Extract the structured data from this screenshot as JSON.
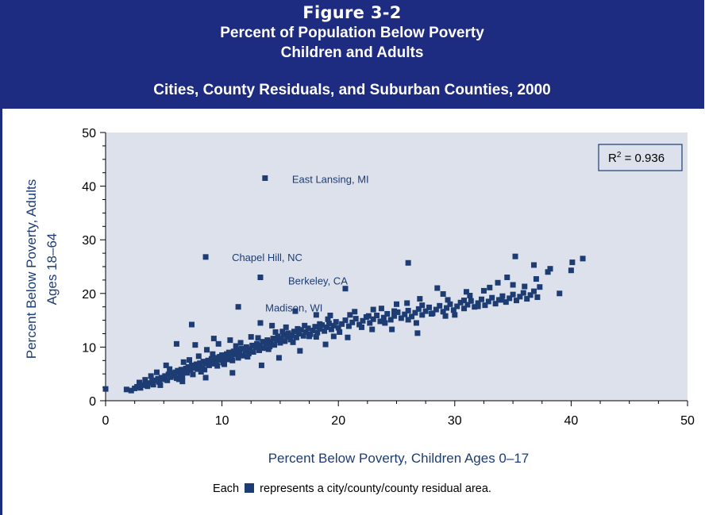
{
  "header": {
    "figure": "Figure 3-2",
    "line1": "Percent of Population Below Poverty",
    "line2": "Children and Adults",
    "line3": "Cities, County Residuals, and Suburban Counties, 2000"
  },
  "colors": {
    "header_bg": "#1d2b80",
    "plot_bg": "#dde1ec",
    "marker": "#1d3c73"
  },
  "chart_data": {
    "type": "scatter",
    "xlabel": "Percent Below Poverty, Children Ages 0–17",
    "ylabel_line1": "Percent Below Poverty, Adults",
    "ylabel_line2": "Ages 18–64",
    "xlim": [
      0,
      50
    ],
    "ylim": [
      0,
      50
    ],
    "xticks": [
      "0",
      "10",
      "20",
      "30",
      "40",
      "50"
    ],
    "yticks": [
      "0",
      "10",
      "20",
      "30",
      "40",
      "50"
    ],
    "r_squared_label": "R",
    "r_squared_sup": "2",
    "r_squared_value": " = 0.936",
    "grid": false,
    "annotations": [
      {
        "text": "East Lansing, MI",
        "x": 13.7,
        "y": 41.5
      },
      {
        "text": "Chapel Hill, NC",
        "x": 8.6,
        "y": 26.8
      },
      {
        "text": "Berkeley, CA",
        "x": 13.3,
        "y": 23.0
      },
      {
        "text": "Madison, WI",
        "x": 11.4,
        "y": 17.5
      }
    ],
    "points": [
      [
        0.0,
        2.2
      ],
      [
        1.8,
        2.1
      ],
      [
        2.2,
        1.9
      ],
      [
        2.5,
        2.3
      ],
      [
        2.7,
        2.6
      ],
      [
        3.0,
        2.4
      ],
      [
        3.2,
        2.9
      ],
      [
        3.5,
        3.1
      ],
      [
        3.6,
        2.7
      ],
      [
        3.8,
        3.3
      ],
      [
        4.0,
        3.6
      ],
      [
        4.1,
        3.0
      ],
      [
        4.3,
        3.8
      ],
      [
        4.5,
        4.1
      ],
      [
        4.6,
        3.5
      ],
      [
        4.8,
        4.3
      ],
      [
        5.0,
        4.0
      ],
      [
        5.1,
        4.6
      ],
      [
        5.3,
        3.8
      ],
      [
        5.4,
        4.9
      ],
      [
        5.6,
        4.4
      ],
      [
        5.7,
        5.1
      ],
      [
        5.9,
        4.7
      ],
      [
        6.0,
        5.3
      ],
      [
        6.1,
        4.2
      ],
      [
        6.2,
        5.6
      ],
      [
        6.4,
        5.0
      ],
      [
        6.5,
        5.8
      ],
      [
        6.6,
        4.5
      ],
      [
        6.8,
        5.4
      ],
      [
        6.9,
        6.0
      ],
      [
        7.0,
        5.2
      ],
      [
        7.1,
        6.3
      ],
      [
        7.3,
        5.7
      ],
      [
        7.4,
        6.6
      ],
      [
        7.5,
        4.9
      ],
      [
        7.6,
        6.1
      ],
      [
        7.8,
        6.8
      ],
      [
        7.9,
        5.9
      ],
      [
        8.0,
        6.4
      ],
      [
        8.1,
        7.0
      ],
      [
        8.3,
        6.2
      ],
      [
        8.4,
        7.3
      ],
      [
        8.5,
        5.8
      ],
      [
        8.6,
        6.9
      ],
      [
        8.8,
        7.5
      ],
      [
        8.9,
        6.6
      ],
      [
        9.0,
        7.2
      ],
      [
        9.1,
        7.8
      ],
      [
        9.3,
        6.9
      ],
      [
        9.4,
        8.0
      ],
      [
        9.5,
        7.4
      ],
      [
        9.6,
        6.5
      ],
      [
        9.8,
        8.2
      ],
      [
        9.9,
        7.6
      ],
      [
        10.0,
        8.5
      ],
      [
        10.1,
        7.1
      ],
      [
        10.3,
        8.0
      ],
      [
        10.4,
        8.7
      ],
      [
        10.5,
        7.7
      ],
      [
        10.6,
        9.0
      ],
      [
        10.8,
        8.3
      ],
      [
        10.9,
        7.5
      ],
      [
        11.0,
        9.2
      ],
      [
        11.1,
        8.6
      ],
      [
        11.3,
        9.5
      ],
      [
        11.4,
        8.0
      ],
      [
        11.5,
        8.9
      ],
      [
        11.7,
        9.7
      ],
      [
        11.8,
        8.4
      ],
      [
        12.0,
        9.3
      ],
      [
        12.1,
        10.0
      ],
      [
        12.3,
        8.8
      ],
      [
        12.4,
        9.6
      ],
      [
        12.6,
        10.3
      ],
      [
        12.7,
        9.1
      ],
      [
        12.9,
        10.0
      ],
      [
        13.0,
        10.6
      ],
      [
        13.2,
        9.4
      ],
      [
        13.3,
        10.3
      ],
      [
        13.5,
        11.0
      ],
      [
        13.6,
        9.8
      ],
      [
        13.8,
        10.7
      ],
      [
        13.9,
        11.3
      ],
      [
        14.1,
        10.1
      ],
      [
        14.2,
        11.0
      ],
      [
        14.4,
        11.6
      ],
      [
        14.5,
        10.4
      ],
      [
        14.7,
        11.3
      ],
      [
        14.8,
        12.0
      ],
      [
        15.0,
        10.8
      ],
      [
        15.1,
        11.6
      ],
      [
        15.3,
        12.3
      ],
      [
        15.4,
        11.1
      ],
      [
        15.6,
        11.9
      ],
      [
        15.7,
        12.6
      ],
      [
        15.9,
        11.4
      ],
      [
        16.0,
        12.2
      ],
      [
        16.2,
        12.9
      ],
      [
        16.4,
        11.8
      ],
      [
        16.6,
        12.5
      ],
      [
        16.8,
        13.2
      ],
      [
        17.0,
        12.1
      ],
      [
        17.2,
        12.8
      ],
      [
        17.4,
        13.5
      ],
      [
        17.6,
        12.4
      ],
      [
        17.8,
        13.1
      ],
      [
        18.0,
        13.8
      ],
      [
        18.2,
        12.7
      ],
      [
        18.4,
        13.4
      ],
      [
        18.6,
        14.1
      ],
      [
        18.8,
        13.0
      ],
      [
        19.0,
        13.7
      ],
      [
        19.2,
        14.4
      ],
      [
        19.4,
        13.3
      ],
      [
        19.6,
        14.0
      ],
      [
        19.8,
        14.7
      ],
      [
        20.0,
        13.6
      ],
      [
        20.3,
        14.3
      ],
      [
        20.6,
        15.0
      ],
      [
        20.9,
        13.9
      ],
      [
        21.2,
        14.6
      ],
      [
        21.5,
        15.3
      ],
      [
        21.8,
        14.2
      ],
      [
        22.1,
        14.9
      ],
      [
        22.4,
        15.6
      ],
      [
        22.7,
        14.5
      ],
      [
        23.0,
        15.2
      ],
      [
        23.3,
        15.9
      ],
      [
        23.6,
        14.8
      ],
      [
        23.9,
        15.5
      ],
      [
        24.2,
        16.2
      ],
      [
        24.5,
        15.1
      ],
      [
        24.8,
        15.8
      ],
      [
        25.1,
        16.5
      ],
      [
        25.4,
        15.4
      ],
      [
        25.7,
        16.1
      ],
      [
        26.0,
        16.8
      ],
      [
        26.3,
        15.7
      ],
      [
        26.6,
        16.4
      ],
      [
        26.9,
        17.1
      ],
      [
        27.2,
        16.0
      ],
      [
        27.5,
        16.7
      ],
      [
        27.8,
        17.4
      ],
      [
        28.1,
        16.3
      ],
      [
        28.4,
        17.0
      ],
      [
        28.7,
        17.7
      ],
      [
        29.0,
        16.6
      ],
      [
        29.3,
        17.3
      ],
      [
        29.6,
        18.0
      ],
      [
        29.9,
        16.9
      ],
      [
        30.2,
        17.6
      ],
      [
        30.5,
        18.3
      ],
      [
        30.8,
        17.2
      ],
      [
        31.1,
        17.9
      ],
      [
        31.4,
        18.6
      ],
      [
        31.7,
        17.5
      ],
      [
        32.0,
        18.2
      ],
      [
        32.3,
        18.9
      ],
      [
        32.6,
        17.8
      ],
      [
        32.9,
        18.5
      ],
      [
        33.2,
        19.2
      ],
      [
        33.5,
        18.1
      ],
      [
        33.8,
        18.8
      ],
      [
        34.1,
        19.5
      ],
      [
        34.4,
        18.4
      ],
      [
        34.7,
        19.1
      ],
      [
        35.0,
        19.8
      ],
      [
        35.3,
        18.7
      ],
      [
        35.6,
        19.4
      ],
      [
        35.9,
        20.1
      ],
      [
        36.2,
        19.0
      ],
      [
        36.5,
        19.7
      ],
      [
        36.8,
        20.4
      ],
      [
        37.1,
        19.3
      ],
      [
        5.5,
        5.9
      ],
      [
        6.3,
        4.0
      ],
      [
        7.2,
        7.6
      ],
      [
        8.2,
        5.4
      ],
      [
        9.2,
        8.7
      ],
      [
        10.2,
        6.8
      ],
      [
        11.2,
        10.2
      ],
      [
        12.2,
        8.2
      ],
      [
        13.1,
        11.7
      ],
      [
        14.0,
        9.6
      ],
      [
        15.2,
        12.9
      ],
      [
        16.1,
        10.9
      ],
      [
        17.1,
        14.0
      ],
      [
        18.1,
        11.9
      ],
      [
        19.1,
        15.2
      ],
      [
        20.1,
        12.8
      ],
      [
        21.0,
        16.0
      ],
      [
        22.0,
        13.7
      ],
      [
        23.0,
        17.0
      ],
      [
        24.0,
        14.5
      ],
      [
        25.0,
        18.0
      ],
      [
        26.0,
        15.1
      ],
      [
        27.0,
        19.0
      ],
      [
        28.0,
        16.2
      ],
      [
        29.0,
        19.9
      ],
      [
        30.0,
        16.0
      ],
      [
        31.0,
        20.3
      ],
      [
        32.0,
        17.6
      ],
      [
        33.0,
        21.1
      ],
      [
        34.0,
        18.8
      ],
      [
        35.0,
        21.6
      ],
      [
        36.0,
        21.3
      ],
      [
        37.0,
        22.7
      ],
      [
        38.0,
        24.0
      ],
      [
        39.0,
        20.0
      ],
      [
        40.0,
        24.3
      ],
      [
        40.1,
        25.8
      ],
      [
        41.0,
        26.5
      ],
      [
        35.2,
        26.9
      ],
      [
        36.8,
        25.3
      ],
      [
        38.2,
        24.6
      ],
      [
        37.3,
        21.2
      ],
      [
        34.5,
        23.0
      ],
      [
        33.7,
        22.0
      ],
      [
        32.5,
        20.5
      ],
      [
        31.3,
        19.6
      ],
      [
        29.4,
        18.8
      ],
      [
        28.5,
        21.0
      ],
      [
        27.2,
        17.8
      ],
      [
        26.0,
        25.7
      ],
      [
        26.8,
        12.6
      ],
      [
        25.9,
        18.2
      ],
      [
        24.8,
        16.7
      ],
      [
        23.7,
        17.2
      ],
      [
        22.6,
        15.8
      ],
      [
        21.4,
        16.6
      ],
      [
        19.3,
        15.9
      ],
      [
        18.4,
        14.3
      ],
      [
        17.5,
        12.0
      ],
      [
        16.5,
        13.4
      ],
      [
        15.5,
        13.7
      ],
      [
        14.6,
        12.8
      ],
      [
        13.3,
        14.5
      ],
      [
        12.5,
        11.9
      ],
      [
        11.6,
        10.8
      ],
      [
        10.7,
        11.3
      ],
      [
        9.7,
        10.6
      ],
      [
        8.7,
        9.5
      ],
      [
        7.7,
        10.4
      ],
      [
        7.4,
        14.2
      ],
      [
        6.1,
        10.6
      ],
      [
        8.0,
        8.3
      ],
      [
        9.3,
        11.6
      ],
      [
        6.7,
        7.2
      ],
      [
        5.2,
        6.6
      ],
      [
        4.4,
        5.3
      ],
      [
        3.9,
        4.6
      ],
      [
        3.4,
        3.9
      ],
      [
        2.9,
        3.4
      ],
      [
        4.7,
        2.9
      ],
      [
        6.6,
        3.6
      ],
      [
        8.6,
        4.3
      ],
      [
        10.9,
        5.2
      ],
      [
        13.4,
        6.6
      ],
      [
        14.9,
        8.0
      ],
      [
        16.7,
        9.3
      ],
      [
        18.9,
        10.5
      ],
      [
        20.8,
        11.8
      ],
      [
        22.9,
        13.3
      ],
      [
        24.6,
        13.3
      ],
      [
        26.7,
        14.5
      ],
      [
        29.2,
        15.8
      ],
      [
        30.8,
        18.7
      ],
      [
        19.6,
        12.0
      ],
      [
        18.1,
        16.0
      ],
      [
        16.3,
        16.7
      ],
      [
        20.6,
        20.9
      ],
      [
        14.3,
        14.0
      ]
    ],
    "highlight_points": [
      [
        13.7,
        41.5
      ],
      [
        8.6,
        26.8
      ],
      [
        13.3,
        23.0
      ],
      [
        11.4,
        17.5
      ]
    ]
  },
  "footnote": {
    "before": "Each",
    "after": "represents a city/county/county residual area."
  }
}
